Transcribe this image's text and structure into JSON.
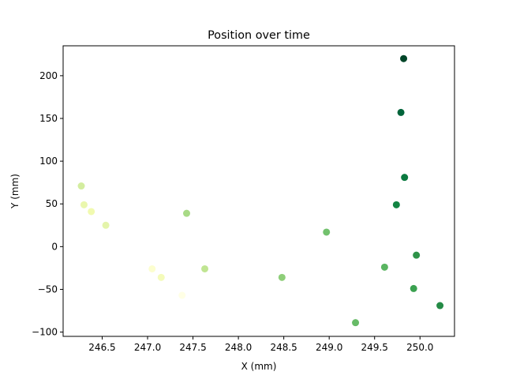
{
  "chart_data": {
    "type": "scatter",
    "title": "Position over time",
    "xlabel": "X (mm)",
    "ylabel": "Y (mm)",
    "xlim": [
      246.07,
      250.38
    ],
    "ylim": [
      -105,
      235
    ],
    "xticks": [
      246.5,
      247.0,
      247.5,
      248.0,
      248.5,
      249.0,
      249.5,
      250.0
    ],
    "xtick_labels": [
      "246.5",
      "247.0",
      "247.5",
      "248.0",
      "248.5",
      "249.0",
      "249.5",
      "250.0"
    ],
    "yticks": [
      -100,
      -50,
      0,
      50,
      100,
      150,
      200
    ],
    "ytick_labels": [
      "−100",
      "−50",
      "0",
      "50",
      "100",
      "150",
      "200"
    ],
    "colormap": "YlGn",
    "grid": false,
    "points": [
      {
        "x": 247.38,
        "y": -57,
        "color": "#ffffe5"
      },
      {
        "x": 247.05,
        "y": -26,
        "color": "#fcfecf"
      },
      {
        "x": 247.15,
        "y": -36,
        "color": "#f4fbba"
      },
      {
        "x": 246.38,
        "y": 41,
        "color": "#f1fab0"
      },
      {
        "x": 246.3,
        "y": 49,
        "color": "#eaf7ad"
      },
      {
        "x": 246.54,
        "y": 25,
        "color": "#e4f4ab"
      },
      {
        "x": 246.27,
        "y": 71,
        "color": "#d3ed9f"
      },
      {
        "x": 247.63,
        "y": -26,
        "color": "#c0e592"
      },
      {
        "x": 247.43,
        "y": 39,
        "color": "#a8da86"
      },
      {
        "x": 248.48,
        "y": -36,
        "color": "#8ece79"
      },
      {
        "x": 248.97,
        "y": 17,
        "color": "#72c16d"
      },
      {
        "x": 249.29,
        "y": -89,
        "color": "#67bb67"
      },
      {
        "x": 249.61,
        "y": -24,
        "color": "#5ab561"
      },
      {
        "x": 249.93,
        "y": -49,
        "color": "#3ba150"
      },
      {
        "x": 249.96,
        "y": -10,
        "color": "#2e9349"
      },
      {
        "x": 250.22,
        "y": -69,
        "color": "#258b46"
      },
      {
        "x": 249.74,
        "y": 49,
        "color": "#138543"
      },
      {
        "x": 249.83,
        "y": 81,
        "color": "#0b7a40"
      },
      {
        "x": 249.79,
        "y": 157,
        "color": "#01643a"
      },
      {
        "x": 249.82,
        "y": 220,
        "color": "#004529"
      }
    ]
  }
}
